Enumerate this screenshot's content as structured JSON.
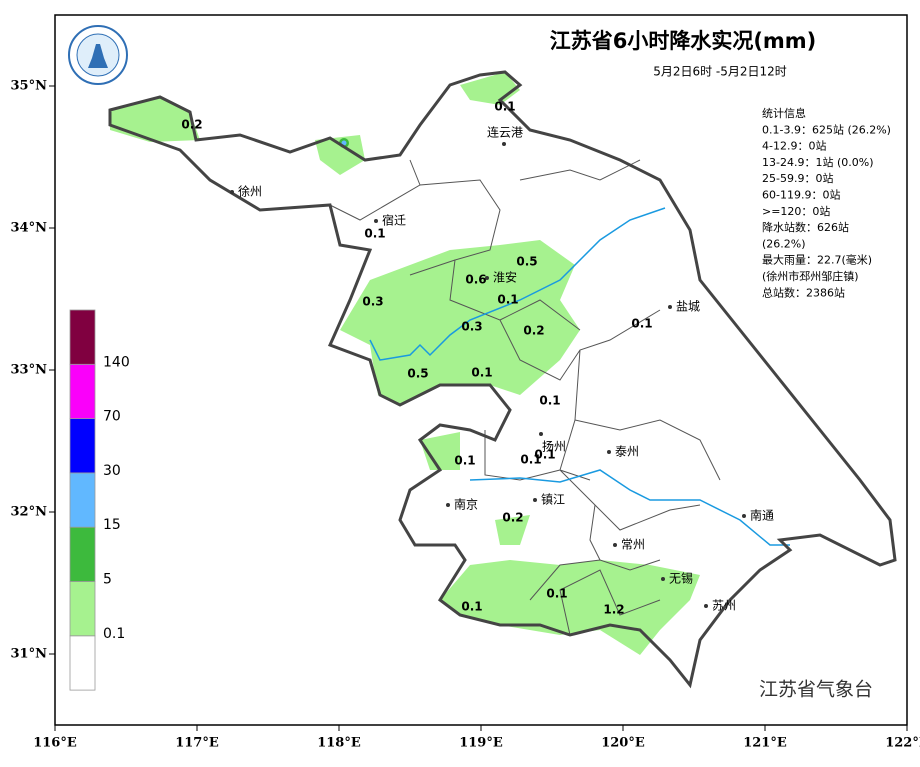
{
  "title": "江苏省6小时降水实况(mm)",
  "subtitle": "5月2日6时 -5月2日12时",
  "footer": "江苏省气象台",
  "stats": [
    "统计信息",
    "0.1-3.9：625站 (26.2%)",
    "4-12.9：0站",
    "13-24.9：1站 (0.0%)",
    "25-59.9：0站",
    "60-119.9：0站",
    ">=120：0站",
    "降水站数：626站",
    "(26.2%)",
    "最大雨量：22.7(毫米)",
    "(徐州市邳州邹庄镇)",
    "总站数：2386站"
  ],
  "axes": {
    "xlim": [
      116,
      122
    ],
    "ylim": [
      30.5,
      35.5
    ],
    "xticks": [
      {
        "value": 116,
        "label": "116°E"
      },
      {
        "value": 117,
        "label": "117°E"
      },
      {
        "value": 118,
        "label": "118°E"
      },
      {
        "value": 119,
        "label": "119°E"
      },
      {
        "value": 120,
        "label": "120°E"
      },
      {
        "value": 121,
        "label": "121°E"
      },
      {
        "value": 122,
        "label": "122°E"
      }
    ],
    "yticks": [
      {
        "value": 31,
        "label": "31°N"
      },
      {
        "value": 32,
        "label": "32°N"
      },
      {
        "value": 33,
        "label": "33°N"
      },
      {
        "value": 34,
        "label": "34°N"
      },
      {
        "value": 35,
        "label": "35°N"
      }
    ]
  },
  "legend": {
    "colors": [
      "#ffffff",
      "#a6f28f",
      "#3dba3d",
      "#61b8ff",
      "#0000ff",
      "#fa00fa",
      "#800040"
    ],
    "labels": [
      0.1,
      5,
      15,
      30,
      70,
      140
    ]
  },
  "cities": [
    "徐州",
    "连云港",
    "宿迁",
    "淮安",
    "盐城",
    "扬州",
    "泰州",
    "南京",
    "镇江",
    "南通",
    "常州",
    "无锡",
    "苏州"
  ],
  "rain_values": [
    0.2,
    0.1,
    0.1,
    0.5,
    0.6,
    0.1,
    0.3,
    0.3,
    0.2,
    0.1,
    0.5,
    0.1,
    0.1,
    0.1,
    0.1,
    0.1,
    0.2,
    0.1,
    0.1,
    1.2
  ]
}
